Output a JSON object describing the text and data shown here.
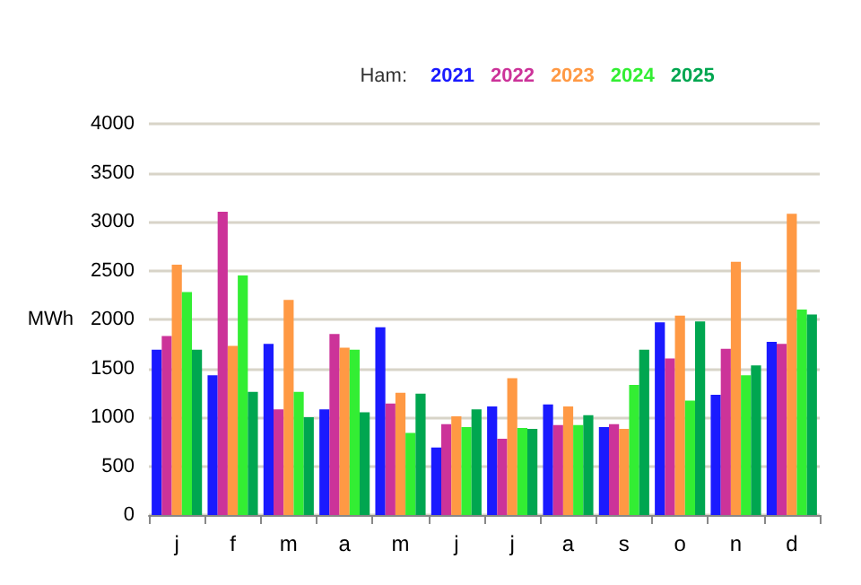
{
  "chart_data": {
    "type": "bar",
    "legend_title": "Ham:",
    "ylabel": "MWh",
    "categories": [
      "j",
      "f",
      "m",
      "a",
      "m",
      "j",
      "j",
      "a",
      "s",
      "o",
      "n",
      "d"
    ],
    "series": [
      {
        "name": "2021",
        "color": "#1a1aff",
        "values": [
          1690,
          1430,
          1750,
          1080,
          1920,
          690,
          1110,
          1130,
          900,
          1970,
          1230,
          1770
        ]
      },
      {
        "name": "2022",
        "color": "#cc3399",
        "values": [
          1830,
          3100,
          1080,
          1850,
          1140,
          930,
          780,
          920,
          930,
          1600,
          1700,
          1750
        ]
      },
      {
        "name": "2023",
        "color": "#ff9944",
        "values": [
          2560,
          1730,
          2200,
          1710,
          1250,
          1010,
          1400,
          1110,
          880,
          2040,
          2590,
          3080
        ]
      },
      {
        "name": "2024",
        "color": "#33ee33",
        "values": [
          2280,
          2450,
          1260,
          1690,
          840,
          900,
          890,
          920,
          1330,
          1170,
          1430,
          2100
        ]
      },
      {
        "name": "2025",
        "color": "#00a650",
        "values": [
          1690,
          1260,
          1000,
          1050,
          1240,
          1080,
          880,
          1020,
          1690,
          1980,
          1530,
          2050
        ]
      }
    ],
    "ylim": [
      0,
      4000
    ],
    "yticks": [
      0,
      500,
      1000,
      1500,
      2000,
      2500,
      3000,
      3500,
      4000
    ],
    "grid": "y",
    "legend": "top"
  }
}
